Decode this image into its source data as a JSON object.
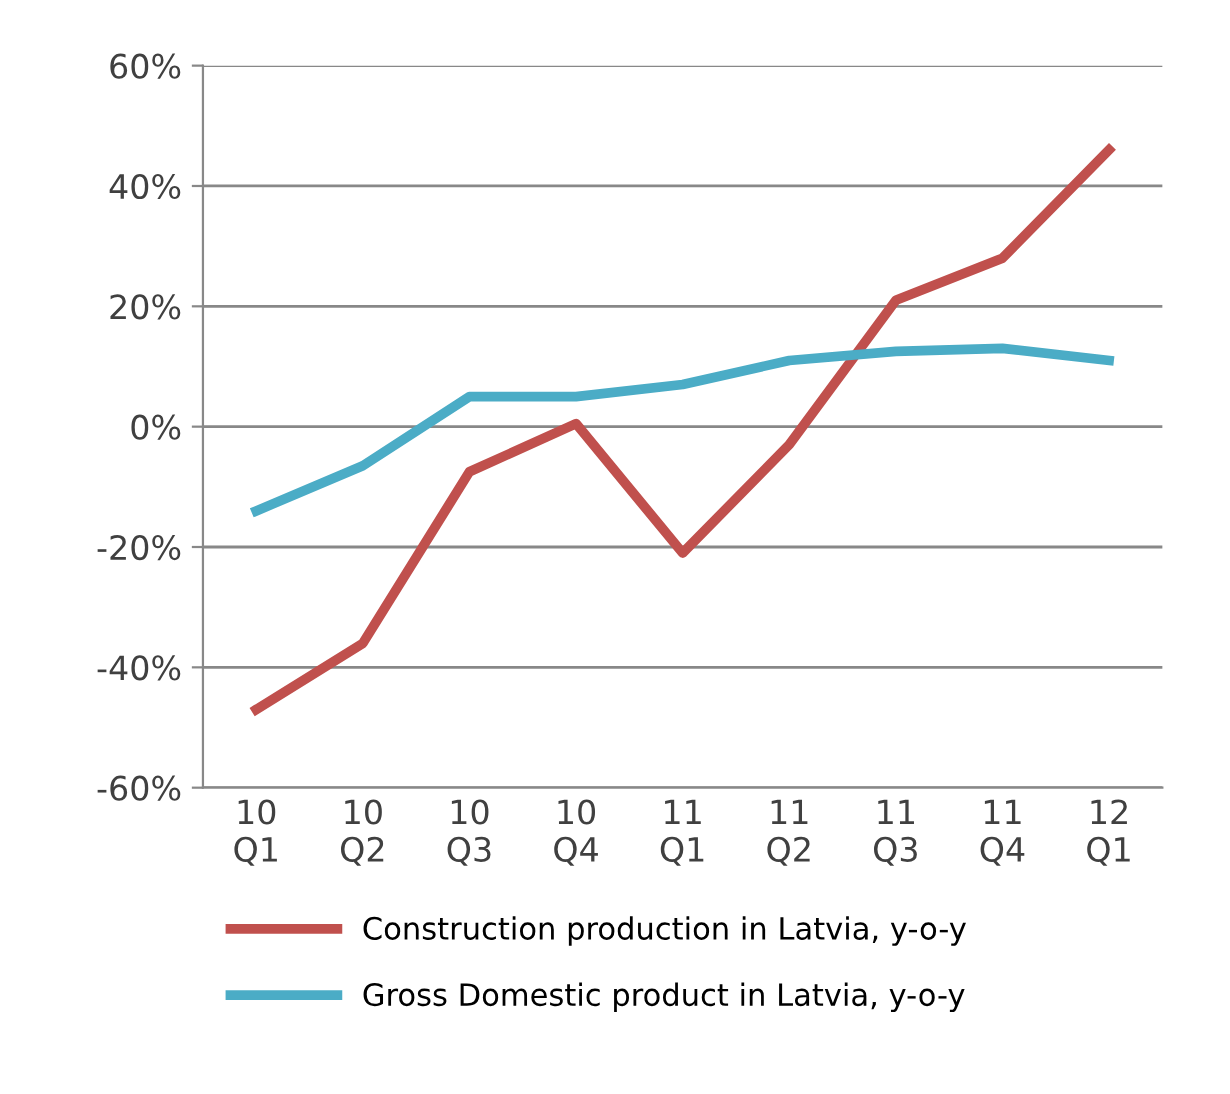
{
  "chart_data": {
    "type": "line",
    "categories": [
      "10\nQ1",
      "10\nQ2",
      "10\nQ3",
      "10\nQ4",
      "11\nQ1",
      "11\nQ2",
      "11\nQ3",
      "11\nQ4",
      "12\nQ1"
    ],
    "series": [
      {
        "name": "Construction production in Latvia, y-o-y",
        "color": "#c0504d",
        "values": [
          -47,
          -36,
          -7.5,
          0.5,
          -21,
          -3,
          21,
          28,
          46
        ]
      },
      {
        "name": "Gross Domestic product in Latvia, y-o-y",
        "color": "#4bacc6",
        "values": [
          -14,
          -6.5,
          5,
          5,
          7,
          11,
          12.5,
          13,
          11
        ]
      }
    ],
    "ylim": [
      -60,
      60
    ],
    "yticks": [
      {
        "value": -60,
        "label": "-60%"
      },
      {
        "value": -40,
        "label": "-40%"
      },
      {
        "value": -20,
        "label": "-20%"
      },
      {
        "value": 0,
        "label": "0%"
      },
      {
        "value": 20,
        "label": "20%"
      },
      {
        "value": 40,
        "label": "40%"
      },
      {
        "value": 60,
        "label": "60%"
      }
    ],
    "grid": "y",
    "legend": "bottom",
    "marker": "none",
    "line_style": "solid"
  }
}
